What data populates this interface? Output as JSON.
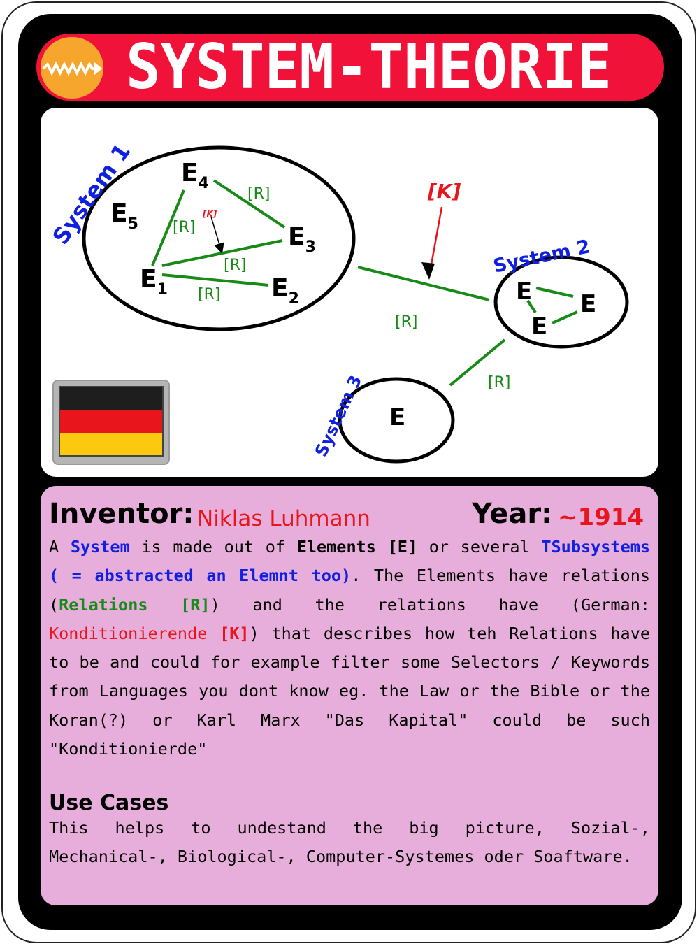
{
  "card": {
    "title": "SYSTEM-THEORIE",
    "icon": "zigzag-arrow-icon",
    "colors": {
      "header": "#f01239",
      "icon_bg": "#f7a62d",
      "panel": "#e8aedb"
    }
  },
  "diagram": {
    "system1_label": "System 1",
    "system2_label": "System 2",
    "system3_label": "System 3",
    "e4": "E",
    "e4_sub": "4",
    "e5": "E",
    "e5_sub": "5",
    "e3": "E",
    "e3_sub": "3",
    "e1": "E",
    "e1_sub": "1",
    "e2": "E",
    "e2_sub": "2",
    "sys2_e_a": "E",
    "sys2_e_b": "E",
    "sys2_e_c": "E",
    "sys3_e": "E",
    "r_e4_e3": "[R]",
    "r_e1_e4": "[R]",
    "r_e1_e3": "[R]",
    "r_e1_e2": "[R]",
    "r_sys1_sys2": "[R]",
    "r_sys2_sys3": "[R]",
    "k_small": "[K]",
    "k_large": "[K]"
  },
  "flag": {
    "icon": "german-flag-icon",
    "colors": [
      "#1e1e1e",
      "#e8161c",
      "#fbc90e"
    ]
  },
  "info": {
    "inventor_label": "Inventor:",
    "inventor_value": "Niklas Luhmann",
    "year_label": "Year:",
    "year_value": "~1914",
    "p1": "A ",
    "p2": "System",
    "p3": " is made out of ",
    "p4": "Elements [E]",
    "p5": " or several ",
    "p6": "TSubsystems ( = abstracted an Elemnt too)",
    "p7": ". The Elements have relations (",
    "p8": "Relations [R]",
    "p9": ") and the relations have (German: ",
    "p10": "Konditionierende",
    "p11": " ",
    "p12": "[K]",
    "p13": ") that describes how teh Relations have to be and could for example filter some Selectors / Keywords from Languages you dont know eg. the Law or the Bible or the Koran(?) or Karl Marx \"Das Kapital\" could be such \"Konditionierde\"",
    "use_cases_heading": "Use Cases",
    "use_cases_text": "This helps to undestand the big picture, Sozial-, Mechanical-, Biological-, Computer-Systemes oder Soaftware."
  }
}
